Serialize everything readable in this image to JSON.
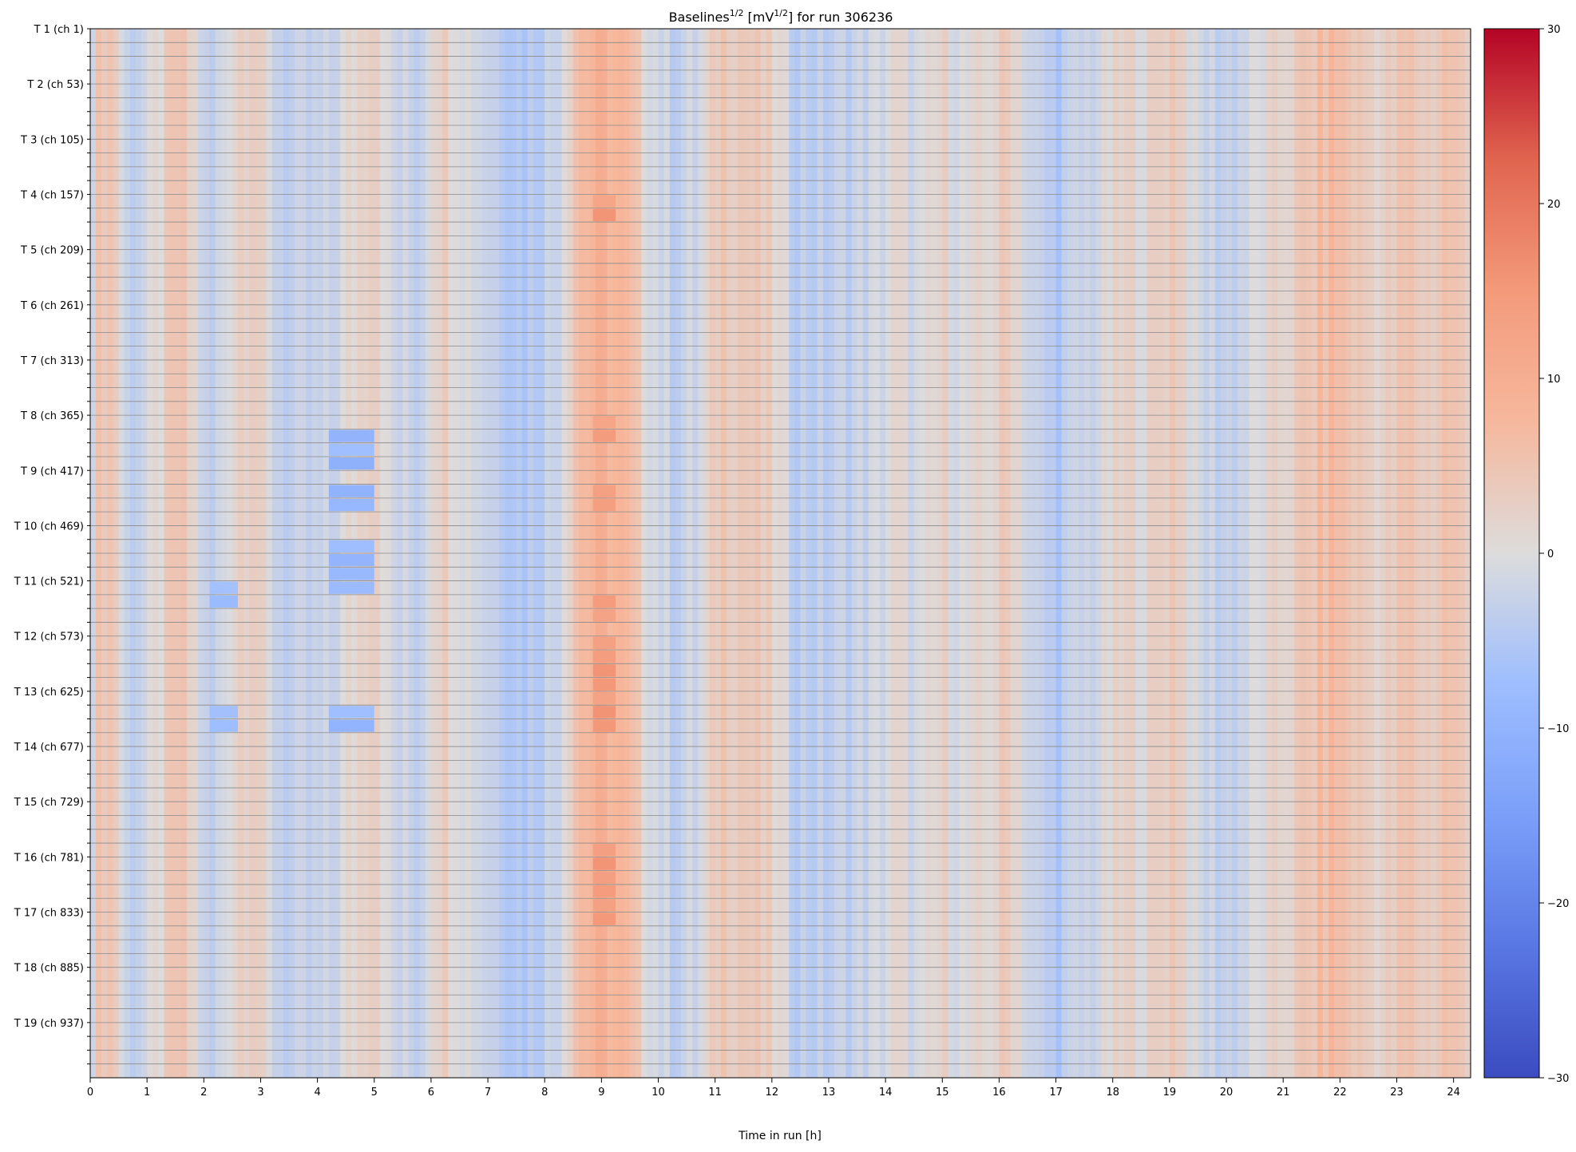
{
  "chart_data": {
    "type": "heatmap",
    "title": {
      "base": "Baselines",
      "exp": "1/2",
      "unit_pre": " [mV",
      "unit_exp": "1/2",
      "unit_post": "] for run 306236"
    },
    "xlabel": "Time in run [h]",
    "x_range": [
      0,
      24.3
    ],
    "x_ticks": [
      "0",
      "1",
      "2",
      "3",
      "4",
      "5",
      "6",
      "7",
      "8",
      "9",
      "10",
      "11",
      "12",
      "13",
      "14",
      "15",
      "16",
      "17",
      "18",
      "19",
      "20",
      "21",
      "22",
      "23",
      "24"
    ],
    "rows": 76,
    "row_tick_labels": [
      "T 1 (ch 1)",
      "T 2 (ch 53)",
      "T 3 (ch 105)",
      "T 4 (ch 157)",
      "T 5 (ch 209)",
      "T 6 (ch 261)",
      "T 7 (ch 313)",
      "T 8 (ch 365)",
      "T 9 (ch 417)",
      "T 10 (ch 469)",
      "T 11 (ch 521)",
      "T 12 (ch 573)",
      "T 13 (ch 625)",
      "T 14 (ch 677)",
      "T 15 (ch 729)",
      "T 16 (ch 781)",
      "T 17 (ch 833)",
      "T 18 (ch 885)",
      "T 19 (ch 937)"
    ],
    "rows_per_label": 4,
    "colorbar": {
      "min": -30,
      "max": 30,
      "ticks": [
        "30",
        "20",
        "10",
        "0",
        "−10",
        "−20",
        "−30"
      ],
      "colormap": "coolwarm"
    },
    "time_profile": [
      {
        "t": 0.0,
        "v": -2
      },
      {
        "t": 0.2,
        "v": 6
      },
      {
        "t": 0.45,
        "v": 4
      },
      {
        "t": 0.6,
        "v": -3
      },
      {
        "t": 1.0,
        "v": -2
      },
      {
        "t": 1.55,
        "v": 5
      },
      {
        "t": 1.85,
        "v": 1
      },
      {
        "t": 2.1,
        "v": -5
      },
      {
        "t": 2.5,
        "v": 2
      },
      {
        "t": 2.9,
        "v": 5
      },
      {
        "t": 3.1,
        "v": -1
      },
      {
        "t": 3.6,
        "v": -4
      },
      {
        "t": 4.2,
        "v": -3
      },
      {
        "t": 4.6,
        "v": 1
      },
      {
        "t": 5.0,
        "v": 5
      },
      {
        "t": 5.3,
        "v": -2
      },
      {
        "t": 5.8,
        "v": -3
      },
      {
        "t": 6.1,
        "v": 4
      },
      {
        "t": 6.5,
        "v": 1
      },
      {
        "t": 7.0,
        "v": -2
      },
      {
        "t": 7.6,
        "v": -5
      },
      {
        "t": 8.2,
        "v": -2
      },
      {
        "t": 8.6,
        "v": 7
      },
      {
        "t": 9.0,
        "v": 9
      },
      {
        "t": 9.4,
        "v": 7
      },
      {
        "t": 9.8,
        "v": 1
      },
      {
        "t": 10.2,
        "v": -3
      },
      {
        "t": 10.7,
        "v": -2
      },
      {
        "t": 11.1,
        "v": 5
      },
      {
        "t": 11.6,
        "v": 4
      },
      {
        "t": 12.0,
        "v": 2
      },
      {
        "t": 12.4,
        "v": -3
      },
      {
        "t": 12.9,
        "v": -4
      },
      {
        "t": 13.3,
        "v": -3
      },
      {
        "t": 13.8,
        "v": -2
      },
      {
        "t": 14.2,
        "v": 1
      },
      {
        "t": 14.6,
        "v": -2
      },
      {
        "t": 15.0,
        "v": 2
      },
      {
        "t": 15.4,
        "v": -1
      },
      {
        "t": 15.8,
        "v": 1
      },
      {
        "t": 16.2,
        "v": 4
      },
      {
        "t": 16.6,
        "v": -3
      },
      {
        "t": 17.0,
        "v": -5
      },
      {
        "t": 17.4,
        "v": -3
      },
      {
        "t": 17.8,
        "v": -1
      },
      {
        "t": 18.2,
        "v": 2
      },
      {
        "t": 18.6,
        "v": 1
      },
      {
        "t": 19.1,
        "v": 5
      },
      {
        "t": 19.5,
        "v": -2
      },
      {
        "t": 20.0,
        "v": -3
      },
      {
        "t": 20.5,
        "v": -1
      },
      {
        "t": 21.0,
        "v": 2
      },
      {
        "t": 21.4,
        "v": 4
      },
      {
        "t": 21.9,
        "v": 7
      },
      {
        "t": 22.3,
        "v": 4
      },
      {
        "t": 22.8,
        "v": 2
      },
      {
        "t": 23.2,
        "v": 5
      },
      {
        "t": 23.6,
        "v": 3
      },
      {
        "t": 23.9,
        "v": 6
      },
      {
        "t": 24.3,
        "v": 2
      }
    ],
    "hotspots": [
      {
        "t0": 8.85,
        "t1": 9.25,
        "v": 14,
        "rows": [
          12,
          13,
          28,
          29,
          33,
          34,
          41,
          42,
          44,
          45,
          46,
          47,
          48,
          49,
          50,
          59,
          60,
          61,
          62,
          63,
          64
        ]
      },
      {
        "t0": 4.2,
        "t1": 5.0,
        "v": -9,
        "rows": [
          29,
          30,
          31,
          33,
          34,
          37,
          38,
          39,
          40,
          49,
          50
        ]
      },
      {
        "t0": 2.1,
        "t1": 2.6,
        "v": -7,
        "rows": [
          40,
          41,
          49,
          50
        ]
      }
    ]
  }
}
